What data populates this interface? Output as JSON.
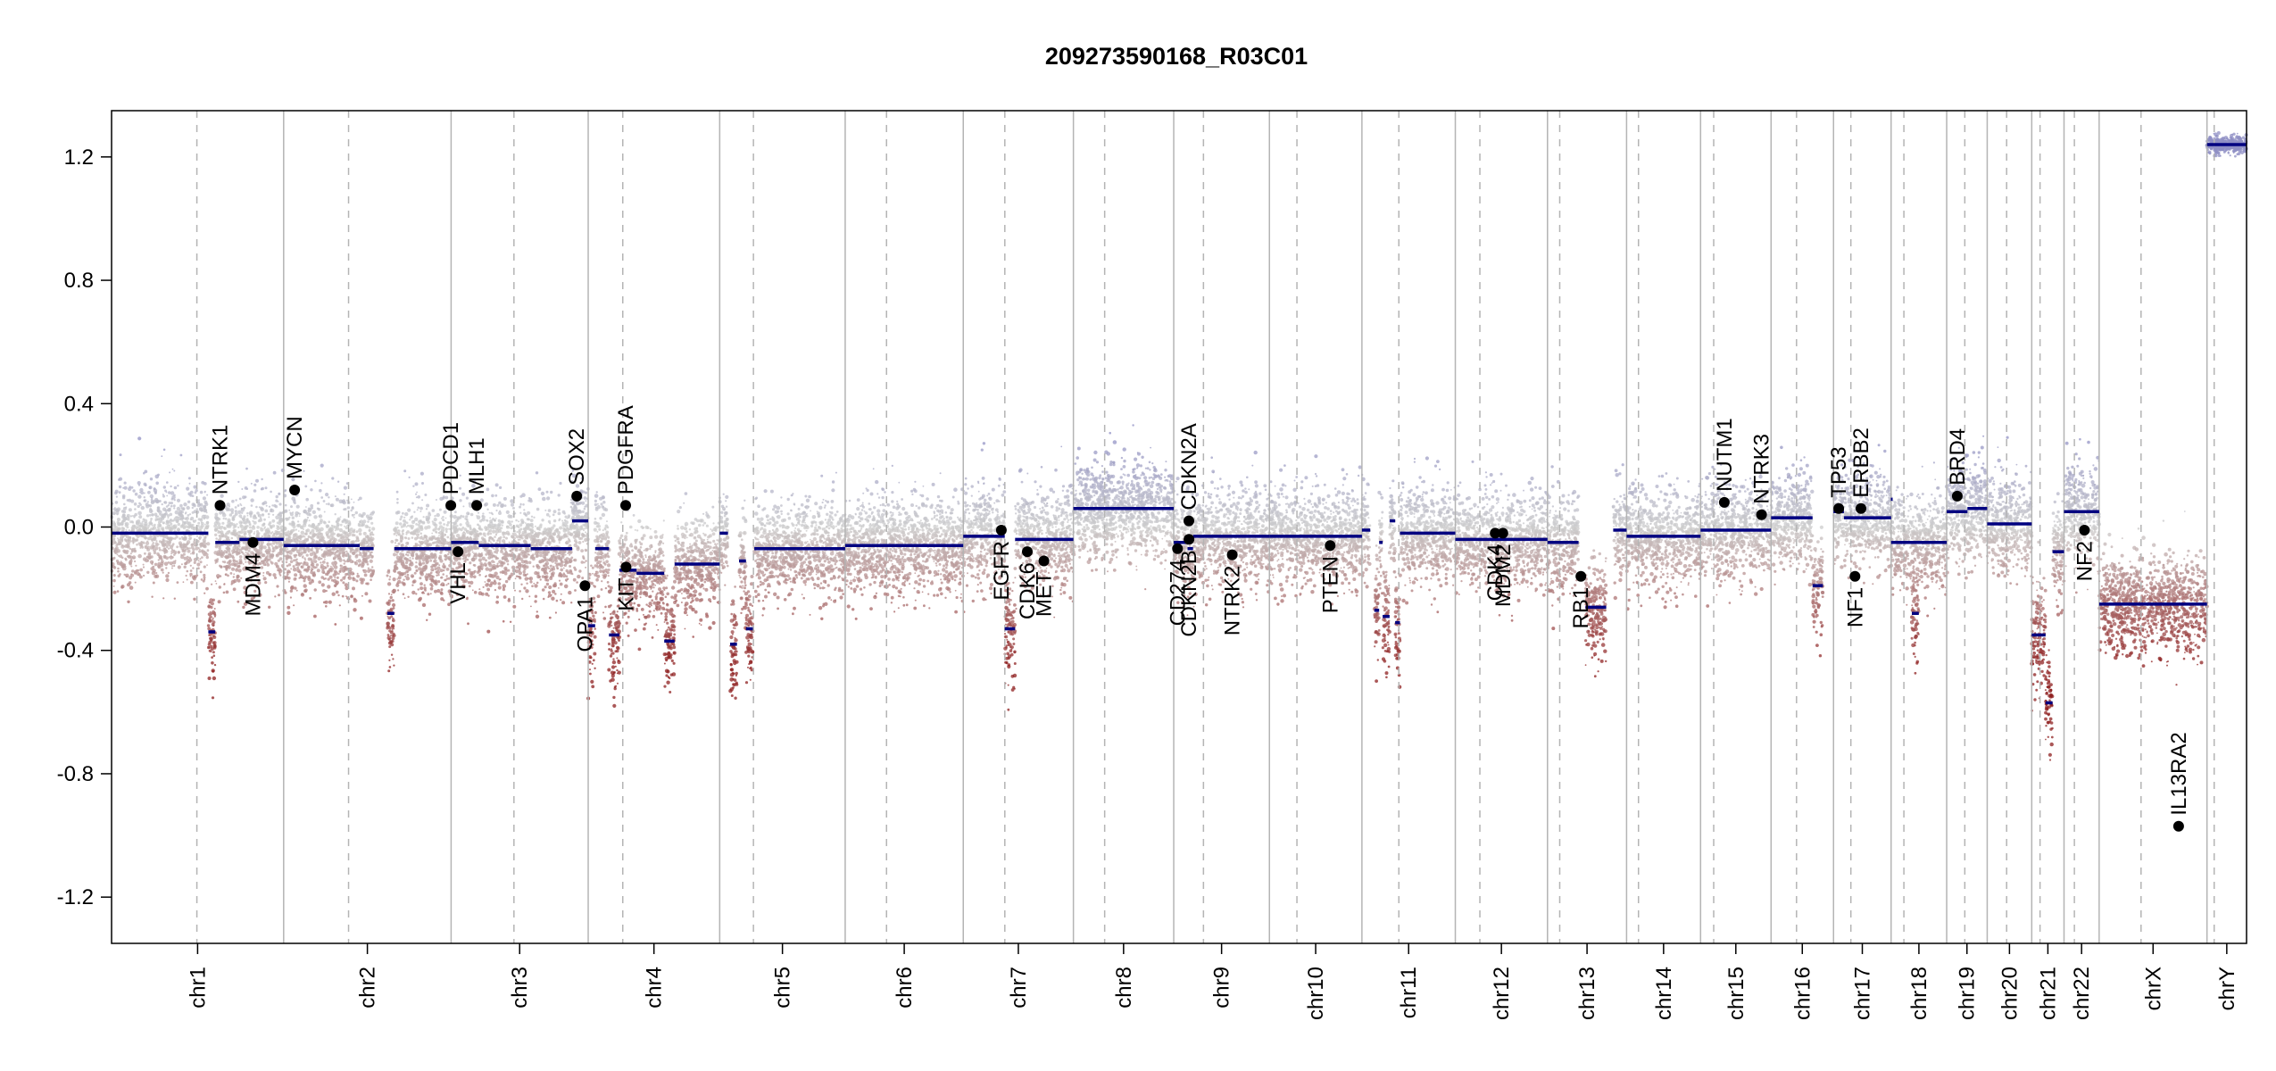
{
  "chart_data": {
    "type": "scatter",
    "title": "209273590168_R03C01",
    "xlabel": "",
    "ylabel": "",
    "ylim": [
      -1.35,
      1.35
    ],
    "yticks": [
      1.2,
      0.8,
      0.4,
      0.0,
      -0.4,
      -0.8,
      -1.2
    ],
    "ytick_labels": [
      "1.2",
      "0.8",
      "0.4",
      "0.0",
      "-0.4",
      "-0.8",
      "-1.2"
    ],
    "grid": false,
    "colors": {
      "high": "#8f8fc4",
      "neutral": "#cccccc",
      "low": "#8f2020",
      "segment": "#000080",
      "gene_point": "#000000",
      "boundary": "#b4b4b4"
    },
    "chromosomes": [
      {
        "name": "chr1",
        "length": 248.9,
        "centromere": 123.4
      },
      {
        "name": "chr2",
        "length": 242.2,
        "centromere": 93.9
      },
      {
        "name": "chr3",
        "length": 198.3,
        "centromere": 90.9
      },
      {
        "name": "chr4",
        "length": 190.2,
        "centromere": 50.0
      },
      {
        "name": "chr5",
        "length": 181.5,
        "centromere": 48.8
      },
      {
        "name": "chr6",
        "length": 170.8,
        "centromere": 59.8
      },
      {
        "name": "chr7",
        "length": 159.3,
        "centromere": 60.1
      },
      {
        "name": "chr8",
        "length": 145.1,
        "centromere": 45.2
      },
      {
        "name": "chr9",
        "length": 138.4,
        "centromere": 43.0
      },
      {
        "name": "chr10",
        "length": 133.8,
        "centromere": 39.8
      },
      {
        "name": "chr11",
        "length": 135.1,
        "centromere": 53.4
      },
      {
        "name": "chr12",
        "length": 133.3,
        "centromere": 35.5
      },
      {
        "name": "chr13",
        "length": 114.4,
        "centromere": 17.7
      },
      {
        "name": "chr14",
        "length": 107.0,
        "centromere": 17.2
      },
      {
        "name": "chr15",
        "length": 102.0,
        "centromere": 19.0
      },
      {
        "name": "chr16",
        "length": 90.3,
        "centromere": 36.8
      },
      {
        "name": "chr17",
        "length": 83.3,
        "centromere": 25.1
      },
      {
        "name": "chr18",
        "length": 80.4,
        "centromere": 18.5
      },
      {
        "name": "chr19",
        "length": 58.6,
        "centromere": 26.2
      },
      {
        "name": "chr20",
        "length": 64.4,
        "centromere": 28.1
      },
      {
        "name": "chr21",
        "length": 46.7,
        "centromere": 12.0
      },
      {
        "name": "chr22",
        "length": 50.8,
        "centromere": 15.0
      },
      {
        "name": "chrX",
        "length": 156.0,
        "centromere": 60.6
      },
      {
        "name": "chrY",
        "length": 57.2,
        "centromere": 10.4
      }
    ],
    "segments": [
      {
        "chr": "chr1",
        "start": 0,
        "end": 140,
        "value": -0.02
      },
      {
        "chr": "chr1",
        "start": 140,
        "end": 150,
        "value": -0.34
      },
      {
        "chr": "chr1",
        "start": 150,
        "end": 185,
        "value": -0.05
      },
      {
        "chr": "chr1",
        "start": 185,
        "end": 248.9,
        "value": -0.04
      },
      {
        "chr": "chr2",
        "start": 0,
        "end": 110,
        "value": -0.06
      },
      {
        "chr": "chr2",
        "start": 110,
        "end": 130,
        "value": -0.07
      },
      {
        "chr": "chr2",
        "start": 150,
        "end": 160,
        "value": -0.28
      },
      {
        "chr": "chr2",
        "start": 160,
        "end": 242.2,
        "value": -0.07
      },
      {
        "chr": "chr3",
        "start": 0,
        "end": 40,
        "value": -0.05
      },
      {
        "chr": "chr3",
        "start": 40,
        "end": 115,
        "value": -0.06
      },
      {
        "chr": "chr3",
        "start": 115,
        "end": 175,
        "value": -0.07
      },
      {
        "chr": "chr3",
        "start": 175,
        "end": 198.3,
        "value": 0.02
      },
      {
        "chr": "chr4",
        "start": 0,
        "end": 10,
        "value": -0.32
      },
      {
        "chr": "chr4",
        "start": 10,
        "end": 30,
        "value": -0.07
      },
      {
        "chr": "chr4",
        "start": 30,
        "end": 45,
        "value": -0.35
      },
      {
        "chr": "chr4",
        "start": 45,
        "end": 70,
        "value": -0.14
      },
      {
        "chr": "chr4",
        "start": 70,
        "end": 110,
        "value": -0.15
      },
      {
        "chr": "chr4",
        "start": 110,
        "end": 125,
        "value": -0.37
      },
      {
        "chr": "chr4",
        "start": 125,
        "end": 190.2,
        "value": -0.12
      },
      {
        "chr": "chr5",
        "start": 0,
        "end": 12,
        "value": -0.02
      },
      {
        "chr": "chr5",
        "start": 15,
        "end": 25,
        "value": -0.38
      },
      {
        "chr": "chr5",
        "start": 28,
        "end": 38,
        "value": -0.11
      },
      {
        "chr": "chr5",
        "start": 38,
        "end": 48,
        "value": -0.33
      },
      {
        "chr": "chr5",
        "start": 50,
        "end": 181.5,
        "value": -0.07
      },
      {
        "chr": "chr6",
        "start": 0,
        "end": 170.8,
        "value": -0.06
      },
      {
        "chr": "chr7",
        "start": 0,
        "end": 60,
        "value": -0.03
      },
      {
        "chr": "chr7",
        "start": 60,
        "end": 75,
        "value": -0.33
      },
      {
        "chr": "chr7",
        "start": 75,
        "end": 159.3,
        "value": -0.04
      },
      {
        "chr": "chr8",
        "start": 0,
        "end": 145.1,
        "value": 0.06
      },
      {
        "chr": "chr9",
        "start": 0,
        "end": 20,
        "value": -0.05
      },
      {
        "chr": "chr9",
        "start": 20,
        "end": 28,
        "value": -0.07
      },
      {
        "chr": "chr9",
        "start": 28,
        "end": 138.4,
        "value": -0.03
      },
      {
        "chr": "chr10",
        "start": 0,
        "end": 133.8,
        "value": -0.03
      },
      {
        "chr": "chr11",
        "start": 0,
        "end": 12,
        "value": -0.01
      },
      {
        "chr": "chr11",
        "start": 18,
        "end": 25,
        "value": -0.27
      },
      {
        "chr": "chr11",
        "start": 25,
        "end": 30,
        "value": -0.05
      },
      {
        "chr": "chr11",
        "start": 30,
        "end": 40,
        "value": -0.29
      },
      {
        "chr": "chr11",
        "start": 40,
        "end": 48,
        "value": 0.02
      },
      {
        "chr": "chr11",
        "start": 48,
        "end": 55,
        "value": -0.31
      },
      {
        "chr": "chr11",
        "start": 55,
        "end": 135.1,
        "value": -0.02
      },
      {
        "chr": "chr12",
        "start": 0,
        "end": 133.3,
        "value": -0.04
      },
      {
        "chr": "chr13",
        "start": 0,
        "end": 45,
        "value": -0.05
      },
      {
        "chr": "chr13",
        "start": 55,
        "end": 85,
        "value": -0.26
      },
      {
        "chr": "chr13",
        "start": 95,
        "end": 114.4,
        "value": -0.01
      },
      {
        "chr": "chr14",
        "start": 0,
        "end": 107.0,
        "value": -0.03
      },
      {
        "chr": "chr15",
        "start": 0,
        "end": 102.0,
        "value": -0.01
      },
      {
        "chr": "chr16",
        "start": 0,
        "end": 60,
        "value": 0.03
      },
      {
        "chr": "chr16",
        "start": 60,
        "end": 75,
        "value": -0.19
      },
      {
        "chr": "chr17",
        "start": 0,
        "end": 15,
        "value": 0.05
      },
      {
        "chr": "chr17",
        "start": 15,
        "end": 83.3,
        "value": 0.03
      },
      {
        "chr": "chr17",
        "start": 83,
        "end": 83.3,
        "value": 0.09
      },
      {
        "chr": "chr18",
        "start": 0,
        "end": 50,
        "value": -0.05
      },
      {
        "chr": "chr18",
        "start": 30,
        "end": 40,
        "value": -0.28
      },
      {
        "chr": "chr18",
        "start": 50,
        "end": 80.4,
        "value": -0.05
      },
      {
        "chr": "chr19",
        "start": 0,
        "end": 30,
        "value": 0.05
      },
      {
        "chr": "chr19",
        "start": 30,
        "end": 58.6,
        "value": 0.06
      },
      {
        "chr": "chr20",
        "start": 0,
        "end": 64.4,
        "value": 0.01
      },
      {
        "chr": "chr21",
        "start": 0,
        "end": 20,
        "value": -0.35
      },
      {
        "chr": "chr21",
        "start": 20,
        "end": 30,
        "value": -0.57
      },
      {
        "chr": "chr21",
        "start": 30,
        "end": 46.7,
        "value": -0.08
      },
      {
        "chr": "chr22",
        "start": 0,
        "end": 50.8,
        "value": 0.05
      },
      {
        "chr": "chrX",
        "start": 0,
        "end": 156.0,
        "value": -0.25
      },
      {
        "chr": "chrY",
        "start": 0,
        "end": 57.2,
        "value": 1.24
      }
    ],
    "genes": [
      {
        "name": "NTRK1",
        "chr": "chr1",
        "pos": 156.8,
        "value": 0.07,
        "side": "up"
      },
      {
        "name": "MDM4",
        "chr": "chr1",
        "pos": 204.5,
        "value": -0.05,
        "side": "down"
      },
      {
        "name": "MYCN",
        "chr": "chr2",
        "pos": 15.9,
        "value": 0.12,
        "side": "up"
      },
      {
        "name": "PDCD1",
        "chr": "chr2",
        "pos": 241.8,
        "value": 0.07,
        "side": "up"
      },
      {
        "name": "VHL",
        "chr": "chr3",
        "pos": 10.1,
        "value": -0.08,
        "side": "down"
      },
      {
        "name": "MLH1",
        "chr": "chr3",
        "pos": 37.0,
        "value": 0.07,
        "side": "up"
      },
      {
        "name": "SOX2",
        "chr": "chr3",
        "pos": 181.7,
        "value": 0.1,
        "side": "up"
      },
      {
        "name": "OPA1",
        "chr": "chr3",
        "pos": 193.6,
        "value": -0.19,
        "side": "down"
      },
      {
        "name": "PDGFRA",
        "chr": "chr4",
        "pos": 54.2,
        "value": 0.07,
        "side": "up"
      },
      {
        "name": "KIT",
        "chr": "chr4",
        "pos": 54.7,
        "value": -0.13,
        "side": "down"
      },
      {
        "name": "EGFR",
        "chr": "chr7",
        "pos": 55.1,
        "value": -0.01,
        "side": "down"
      },
      {
        "name": "CDK6",
        "chr": "chr7",
        "pos": 92.6,
        "value": -0.08,
        "side": "down"
      },
      {
        "name": "MET",
        "chr": "chr7",
        "pos": 116.7,
        "value": -0.11,
        "side": "down"
      },
      {
        "name": "CD274",
        "chr": "chr9",
        "pos": 5.5,
        "value": -0.07,
        "side": "down"
      },
      {
        "name": "CDKN2B",
        "chr": "chr9",
        "pos": 22.0,
        "value": -0.04,
        "side": "down"
      },
      {
        "name": "CDKN2A",
        "chr": "chr9",
        "pos": 21.9,
        "value": 0.02,
        "side": "up"
      },
      {
        "name": "NTRK2",
        "chr": "chr9",
        "pos": 84.7,
        "value": -0.09,
        "side": "down"
      },
      {
        "name": "PTEN",
        "chr": "chr10",
        "pos": 87.9,
        "value": -0.06,
        "side": "down"
      },
      {
        "name": "CDK4",
        "chr": "chr12",
        "pos": 57.7,
        "value": -0.02,
        "side": "down"
      },
      {
        "name": "MDM2",
        "chr": "chr12",
        "pos": 68.8,
        "value": -0.02,
        "side": "down"
      },
      {
        "name": "RB1",
        "chr": "chr13",
        "pos": 48.3,
        "value": -0.16,
        "side": "down"
      },
      {
        "name": "NUTM1",
        "chr": "chr15",
        "pos": 34.3,
        "value": 0.08,
        "side": "up"
      },
      {
        "name": "NTRK3",
        "chr": "chr15",
        "pos": 88.2,
        "value": 0.04,
        "side": "up"
      },
      {
        "name": "TP53",
        "chr": "chr17",
        "pos": 7.6,
        "value": 0.06,
        "side": "up"
      },
      {
        "name": "NF1",
        "chr": "chr17",
        "pos": 31.1,
        "value": -0.16,
        "side": "down"
      },
      {
        "name": "ERBB2",
        "chr": "chr17",
        "pos": 39.7,
        "value": 0.06,
        "side": "up"
      },
      {
        "name": "BRD4",
        "chr": "chr19",
        "pos": 15.3,
        "value": 0.1,
        "side": "up"
      },
      {
        "name": "NF2",
        "chr": "chr22",
        "pos": 29.6,
        "value": -0.01,
        "side": "down"
      },
      {
        "name": "IL13RA2",
        "chr": "chrX",
        "pos": 115.0,
        "value": -0.97,
        "side": "up"
      }
    ]
  }
}
